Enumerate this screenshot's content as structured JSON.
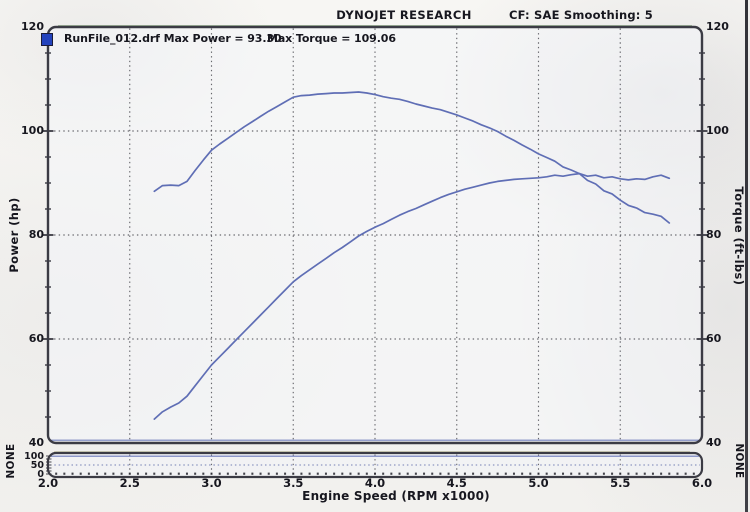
{
  "header": {
    "title": "DYNOJET RESEARCH",
    "correction": "CF: SAE  Smoothing: 5"
  },
  "legend": {
    "run_label": "RunFile_012.drf Max Power = 93.30",
    "torque_label": "Max Torque = 109.06"
  },
  "axes": {
    "left_title": "Power (hp)",
    "right_title": "Torque (ft-lbs)",
    "x_title": "Engine Speed (RPM x1000)",
    "y_ticks": [
      "120",
      "100",
      "80",
      "60",
      "40"
    ],
    "x_ticks": [
      "2.0",
      "2.5",
      "3.0",
      "3.5",
      "4.0",
      "4.5",
      "5.0",
      "5.5",
      "6.0"
    ],
    "aux_ticks": [
      "100",
      "50",
      "0"
    ],
    "aux_left_label": "NONE",
    "aux_right_label": "NONE"
  },
  "colors": {
    "curve": "#5f6eb5",
    "border": "#3b3b44",
    "grid": "#45454c",
    "text": "#17171f",
    "paper": "#f6f5f2",
    "legend_marker": "#2443bd",
    "aux_dotted": "#6673ae"
  },
  "chart_data": {
    "type": "line",
    "title": "DYNOJET RESEARCH",
    "subtitle": "CF: SAE  Smoothing: 5",
    "xlabel": "Engine Speed (RPM x1000)",
    "ylabel_left": "Power (hp)",
    "ylabel_right": "Torque (ft-lbs)",
    "xlim": [
      2.0,
      6.0
    ],
    "ylim": [
      40,
      120
    ],
    "x_major_step": 0.5,
    "y_major_step": 20,
    "y_minor_step": 5,
    "grid": "dotted",
    "legend_position": "top-left",
    "max_power": 93.3,
    "max_torque": 109.06,
    "run_file": "RunFile_012.drf",
    "x": [
      2.65,
      2.7,
      2.75,
      2.8,
      2.85,
      2.9,
      2.95,
      3,
      3.05,
      3.1,
      3.15,
      3.2,
      3.25,
      3.3,
      3.35,
      3.4,
      3.45,
      3.5,
      3.55,
      3.6,
      3.65,
      3.7,
      3.75,
      3.8,
      3.85,
      3.9,
      3.95,
      4,
      4.05,
      4.1,
      4.15,
      4.2,
      4.25,
      4.3,
      4.35,
      4.4,
      4.45,
      4.5,
      4.55,
      4.6,
      4.65,
      4.7,
      4.75,
      4.8,
      4.85,
      4.9,
      4.95,
      5,
      5.05,
      5.1,
      5.15,
      5.2,
      5.25,
      5.3,
      5.35,
      5.4,
      5.45,
      5.5,
      5.55,
      5.6,
      5.65,
      5.7,
      5.75,
      5.8
    ],
    "series": [
      {
        "name": "Power (hp)",
        "axis": "left",
        "values": [
          44.6,
          46,
          46.9,
          47.7,
          49,
          51,
          53,
          55,
          56.6,
          58.2,
          59.8,
          61.4,
          63,
          64.6,
          66.2,
          67.8,
          69.4,
          71,
          72.2,
          73.3,
          74.4,
          75.5,
          76.6,
          77.6,
          78.7,
          79.8,
          80.7,
          81.5,
          82.2,
          83,
          83.8,
          84.5,
          85.1,
          85.8,
          86.5,
          87.2,
          87.8,
          88.3,
          88.8,
          89.2,
          89.6,
          90,
          90.3,
          90.5,
          90.7,
          90.8,
          90.9,
          91,
          91.2,
          91.5,
          91.3,
          91.6,
          91.8,
          91.3,
          91.5,
          91,
          91.2,
          90.8,
          90.6,
          90.8,
          90.7,
          91.2,
          91.5,
          90.9
        ]
      },
      {
        "name": "Torque (ft-lbs)",
        "axis": "right",
        "values": [
          88.4,
          89.5,
          89.6,
          89.5,
          90.3,
          92.4,
          94.4,
          96.3,
          97.5,
          98.6,
          99.7,
          100.8,
          101.8,
          102.8,
          103.8,
          104.7,
          105.6,
          106.5,
          106.8,
          106.9,
          107.1,
          107.2,
          107.3,
          107.3,
          107.4,
          107.5,
          107.3,
          107,
          106.6,
          106.3,
          106.1,
          105.7,
          105.2,
          104.8,
          104.4,
          104.1,
          103.6,
          103.1,
          102.5,
          101.9,
          101.2,
          100.6,
          99.9,
          99,
          98.2,
          97.3,
          96.5,
          95.6,
          94.9,
          94.2,
          93.1,
          92.5,
          91.8,
          90.5,
          89.8,
          88.5,
          87.9,
          86.7,
          85.7,
          85.2,
          84.3,
          84,
          83.6,
          82.3
        ]
      }
    ],
    "aux_channel": {
      "name": "NONE",
      "ylim": [
        0,
        100
      ],
      "gridline_at": 50
    }
  }
}
